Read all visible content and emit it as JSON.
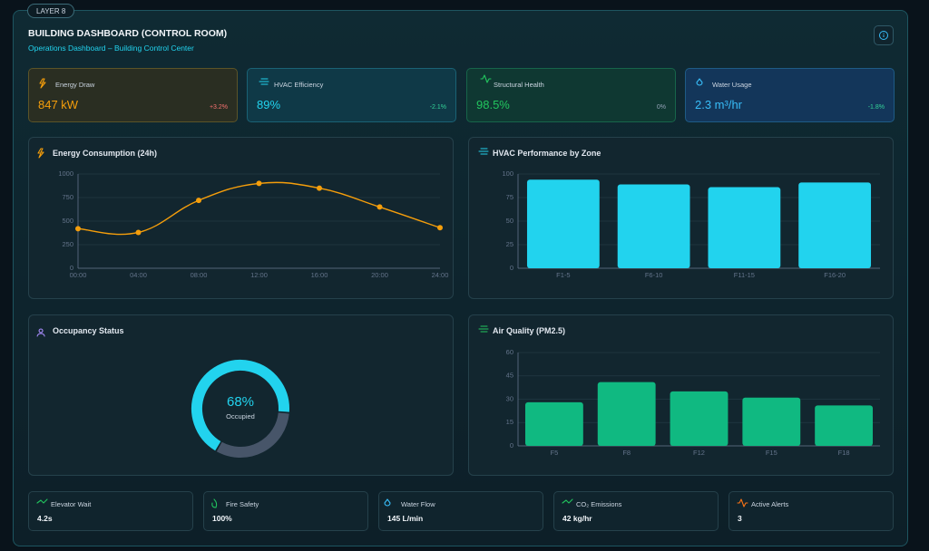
{
  "header": {
    "badge": "LAYER 8",
    "title": "BUILDING DASHBOARD (CONTROL ROOM)",
    "subtitle": "Operations Dashboard – Building Control Center"
  },
  "kpis": [
    {
      "label": "Energy Draw",
      "value": "847 kW",
      "change": "+3.2%"
    },
    {
      "label": "HVAC Efficiency",
      "value": "89%",
      "change": "-2.1%"
    },
    {
      "label": "Structural Health",
      "value": "98.5%",
      "change": "0%"
    },
    {
      "label": "Water Usage",
      "value": "2.3 m³/hr",
      "change": "-1.8%"
    }
  ],
  "chart_data": [
    {
      "type": "line",
      "title": "Energy Consumption (24h)",
      "categories": [
        "00:00",
        "04:00",
        "08:00",
        "12:00",
        "16:00",
        "20:00",
        "24:00"
      ],
      "values": [
        420,
        380,
        720,
        900,
        850,
        650,
        430
      ],
      "color": "#f59e0b",
      "ylim": [
        0,
        1000
      ],
      "yticks": [
        0,
        250,
        500,
        750,
        1000
      ],
      "grid": true
    },
    {
      "type": "bar",
      "title": "HVAC Performance by Zone",
      "categories": [
        "F1-5",
        "F6-10",
        "F11-15",
        "F16-20"
      ],
      "values": [
        94,
        89,
        86,
        91
      ],
      "color": "#22d3ee",
      "ylim": [
        0,
        100
      ],
      "yticks": [
        0,
        25,
        50,
        75,
        100
      ],
      "grid": true
    },
    {
      "type": "doughnut",
      "title": "Occupancy Status",
      "values": [
        68,
        32
      ],
      "colors": [
        "#22d3ee",
        "#475569"
      ],
      "center_label": "68%",
      "center_caption": "Occupied"
    },
    {
      "type": "bar",
      "title": "Air Quality (PM2.5)",
      "categories": [
        "F5",
        "F8",
        "F12",
        "F15",
        "F18"
      ],
      "values": [
        28,
        41,
        35,
        31,
        26
      ],
      "color": "#10b981",
      "ylim": [
        0,
        60
      ],
      "yticks": [
        0,
        15,
        30,
        45,
        60
      ],
      "grid": true
    }
  ],
  "stats": [
    {
      "label": "Elevator Wait",
      "value": "4.2s"
    },
    {
      "label": "Fire Safety",
      "value": "100%"
    },
    {
      "label": "Water Flow",
      "value": "145 L/min"
    },
    {
      "label": "CO₂ Emissions",
      "value": "42 kg/hr"
    },
    {
      "label": "Active Alerts",
      "value": "3"
    }
  ]
}
